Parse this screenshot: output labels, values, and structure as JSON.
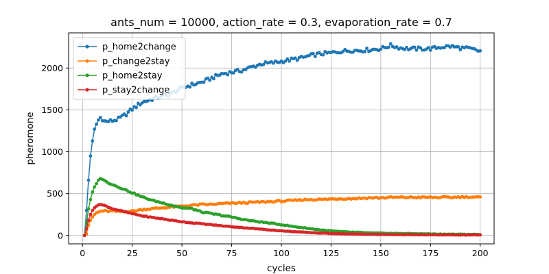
{
  "chart_data": {
    "type": "line",
    "title": "ants_num = 10000, action_rate = 0.3, evaporation_rate = 0.7",
    "xlabel": "cycles",
    "ylabel": "pheromone",
    "xlim": [
      -7,
      207
    ],
    "ylim": [
      -100,
      2420
    ],
    "xticks": [
      0,
      25,
      50,
      75,
      100,
      125,
      150,
      175,
      200
    ],
    "yticks": [
      0,
      500,
      1000,
      1500,
      2000
    ],
    "grid": true,
    "legend_position": "top-left",
    "x_range": [
      1,
      200
    ],
    "series": [
      {
        "name": "p_home2change",
        "color": "#1f77b4",
        "points": [
          [
            1,
            0
          ],
          [
            2,
            300
          ],
          [
            3,
            660
          ],
          [
            4,
            950
          ],
          [
            5,
            1130
          ],
          [
            6,
            1270
          ],
          [
            7,
            1330
          ],
          [
            8,
            1380
          ],
          [
            9,
            1410
          ],
          [
            10,
            1370
          ],
          [
            12,
            1360
          ],
          [
            15,
            1370
          ],
          [
            18,
            1390
          ],
          [
            20,
            1420
          ],
          [
            22,
            1450
          ],
          [
            25,
            1510
          ],
          [
            28,
            1560
          ],
          [
            30,
            1590
          ],
          [
            35,
            1630
          ],
          [
            40,
            1660
          ],
          [
            45,
            1700
          ],
          [
            50,
            1760
          ],
          [
            55,
            1800
          ],
          [
            60,
            1830
          ],
          [
            65,
            1880
          ],
          [
            70,
            1930
          ],
          [
            75,
            1950
          ],
          [
            80,
            1970
          ],
          [
            85,
            2010
          ],
          [
            90,
            2050
          ],
          [
            95,
            2060
          ],
          [
            100,
            2080
          ],
          [
            105,
            2100
          ],
          [
            110,
            2120
          ],
          [
            115,
            2150
          ],
          [
            120,
            2170
          ],
          [
            125,
            2180
          ],
          [
            130,
            2200
          ],
          [
            135,
            2210
          ],
          [
            140,
            2210
          ],
          [
            145,
            2220
          ],
          [
            150,
            2230
          ],
          [
            155,
            2270
          ],
          [
            160,
            2240
          ],
          [
            165,
            2230
          ],
          [
            170,
            2230
          ],
          [
            175,
            2230
          ],
          [
            180,
            2250
          ],
          [
            185,
            2260
          ],
          [
            190,
            2240
          ],
          [
            195,
            2230
          ],
          [
            200,
            2200
          ]
        ]
      },
      {
        "name": "p_change2stay",
        "color": "#ff7f0e",
        "points": [
          [
            1,
            0
          ],
          [
            2,
            20
          ],
          [
            3,
            120
          ],
          [
            4,
            180
          ],
          [
            5,
            220
          ],
          [
            6,
            250
          ],
          [
            7,
            270
          ],
          [
            8,
            280
          ],
          [
            9,
            290
          ],
          [
            10,
            290
          ],
          [
            15,
            290
          ],
          [
            20,
            285
          ],
          [
            25,
            290
          ],
          [
            30,
            310
          ],
          [
            35,
            320
          ],
          [
            40,
            330
          ],
          [
            45,
            340
          ],
          [
            50,
            350
          ],
          [
            55,
            360
          ],
          [
            60,
            370
          ],
          [
            65,
            370
          ],
          [
            70,
            380
          ],
          [
            75,
            385
          ],
          [
            80,
            390
          ],
          [
            85,
            395
          ],
          [
            90,
            400
          ],
          [
            95,
            405
          ],
          [
            100,
            410
          ],
          [
            105,
            415
          ],
          [
            110,
            425
          ],
          [
            115,
            430
          ],
          [
            120,
            430
          ],
          [
            125,
            435
          ],
          [
            130,
            440
          ],
          [
            135,
            440
          ],
          [
            140,
            445
          ],
          [
            145,
            450
          ],
          [
            150,
            450
          ],
          [
            155,
            455
          ],
          [
            160,
            455
          ],
          [
            165,
            455
          ],
          [
            170,
            455
          ],
          [
            175,
            455
          ],
          [
            180,
            455
          ],
          [
            185,
            455
          ],
          [
            190,
            460
          ],
          [
            195,
            460
          ],
          [
            200,
            455
          ]
        ]
      },
      {
        "name": "p_home2stay",
        "color": "#2ca02c",
        "points": [
          [
            1,
            0
          ],
          [
            2,
            150
          ],
          [
            3,
            320
          ],
          [
            4,
            430
          ],
          [
            5,
            520
          ],
          [
            6,
            580
          ],
          [
            7,
            620
          ],
          [
            8,
            660
          ],
          [
            9,
            680
          ],
          [
            10,
            670
          ],
          [
            12,
            640
          ],
          [
            15,
            610
          ],
          [
            18,
            580
          ],
          [
            20,
            560
          ],
          [
            25,
            510
          ],
          [
            30,
            460
          ],
          [
            35,
            420
          ],
          [
            40,
            390
          ],
          [
            45,
            360
          ],
          [
            50,
            330
          ],
          [
            55,
            320
          ],
          [
            60,
            280
          ],
          [
            65,
            260
          ],
          [
            70,
            240
          ],
          [
            75,
            220
          ],
          [
            80,
            195
          ],
          [
            85,
            175
          ],
          [
            90,
            160
          ],
          [
            95,
            145
          ],
          [
            100,
            130
          ],
          [
            105,
            110
          ],
          [
            110,
            95
          ],
          [
            115,
            80
          ],
          [
            120,
            65
          ],
          [
            125,
            55
          ],
          [
            130,
            45
          ],
          [
            135,
            40
          ],
          [
            140,
            35
          ],
          [
            145,
            30
          ],
          [
            150,
            28
          ],
          [
            155,
            25
          ],
          [
            160,
            24
          ],
          [
            165,
            22
          ],
          [
            170,
            20
          ],
          [
            175,
            18
          ],
          [
            180,
            16
          ],
          [
            185,
            15
          ],
          [
            190,
            14
          ],
          [
            195,
            13
          ],
          [
            200,
            12
          ]
        ]
      },
      {
        "name": "p_stay2change",
        "color": "#d62728",
        "points": [
          [
            1,
            0
          ],
          [
            2,
            80
          ],
          [
            3,
            180
          ],
          [
            4,
            250
          ],
          [
            5,
            300
          ],
          [
            6,
            330
          ],
          [
            7,
            350
          ],
          [
            8,
            365
          ],
          [
            9,
            370
          ],
          [
            10,
            365
          ],
          [
            12,
            350
          ],
          [
            15,
            320
          ],
          [
            20,
            290
          ],
          [
            25,
            260
          ],
          [
            30,
            235
          ],
          [
            35,
            215
          ],
          [
            40,
            200
          ],
          [
            45,
            180
          ],
          [
            50,
            165
          ],
          [
            55,
            150
          ],
          [
            60,
            140
          ],
          [
            65,
            128
          ],
          [
            70,
            115
          ],
          [
            75,
            105
          ],
          [
            80,
            95
          ],
          [
            85,
            85
          ],
          [
            90,
            75
          ],
          [
            95,
            65
          ],
          [
            100,
            55
          ],
          [
            105,
            48
          ],
          [
            110,
            40
          ],
          [
            115,
            34
          ],
          [
            120,
            28
          ],
          [
            125,
            24
          ],
          [
            130,
            20
          ],
          [
            135,
            17
          ],
          [
            140,
            15
          ],
          [
            145,
            13
          ],
          [
            150,
            12
          ],
          [
            155,
            11
          ],
          [
            160,
            10
          ],
          [
            165,
            9
          ],
          [
            170,
            8
          ],
          [
            175,
            8
          ],
          [
            180,
            7
          ],
          [
            185,
            7
          ],
          [
            190,
            6
          ],
          [
            195,
            6
          ],
          [
            200,
            6
          ]
        ]
      }
    ]
  }
}
